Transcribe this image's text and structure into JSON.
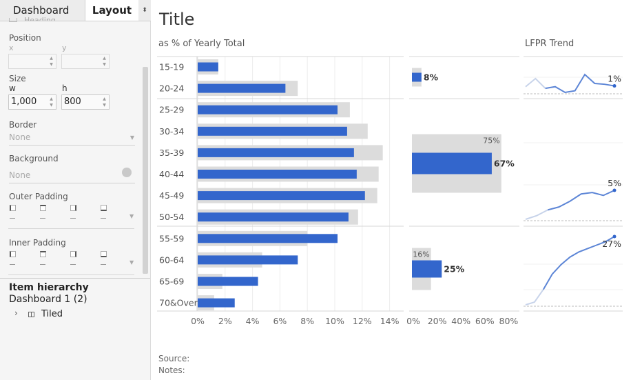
{
  "left_pane": {
    "tabs": {
      "dashboard": "Dashboard",
      "layout": "Layout",
      "menu_glyph": "⬍"
    },
    "partial_top_label": "Heading",
    "position": {
      "label": "Position",
      "x_label": "x",
      "y_label": "y",
      "x_value": "",
      "y_value": ""
    },
    "size": {
      "label": "Size",
      "w_label": "w",
      "h_label": "h",
      "w_value": "1,000",
      "h_value": "800"
    },
    "border": {
      "label": "Border",
      "value": "None"
    },
    "background": {
      "label": "Background",
      "value": "None"
    },
    "outer_padding": {
      "label": "Outer Padding"
    },
    "inner_padding": {
      "label": "Inner Padding"
    },
    "item_hierarchy": {
      "title": "Item hierarchy",
      "dashboard": "Dashboard 1 (2)",
      "tiled": "Tiled",
      "expand_glyph": "›"
    }
  },
  "dashboard": {
    "title": "Title",
    "col_headers": {
      "bar": "as % of Yearly Total",
      "trend": "LFPR Trend"
    },
    "source_label": "Source:",
    "notes_label": "Notes:"
  },
  "colors": {
    "accent": "#3366cc",
    "grey_bar": "#dcdcdc",
    "trend_light": "#c7d3ea"
  },
  "chart_data": [
    {
      "type": "bar",
      "title": "as % of Yearly Total",
      "categories": [
        "15-19",
        "20-24",
        "25-29",
        "30-34",
        "35-39",
        "40-44",
        "45-49",
        "50-54",
        "55-59",
        "60-64",
        "65-69",
        "70&Over"
      ],
      "series": [
        {
          "values": [
            1.5,
            7.3,
            11.1,
            12.4,
            13.5,
            13.2,
            13.1,
            11.7,
            8.0,
            4.7,
            1.8,
            1.2
          ]
        },
        {
          "values": [
            1.5,
            6.4,
            10.2,
            10.9,
            11.4,
            11.6,
            12.2,
            11.0,
            10.2,
            7.3,
            4.4,
            2.7
          ]
        }
      ],
      "xlim": [
        0,
        14
      ],
      "x_ticks": [
        "0%",
        "2%",
        "4%",
        "6%",
        "8%",
        "10%",
        "12%",
        "14%"
      ],
      "grid": true
    },
    {
      "type": "bar",
      "groups": [
        {
          "grey": 8,
          "blue": 8,
          "grey_label": "",
          "blue_label": "8%"
        },
        {
          "grey": 75,
          "blue": 67,
          "grey_label": "75%",
          "blue_label": "67%"
        },
        {
          "grey": 16,
          "blue": 25,
          "grey_label": "16%",
          "blue_label": "25%"
        }
      ],
      "xlim": [
        0,
        80
      ],
      "x_ticks": [
        "0%",
        "20%",
        "40%",
        "60%",
        "80%"
      ]
    },
    {
      "type": "line",
      "title": "LFPR Trend",
      "panels": [
        {
          "values": [
            45,
            55,
            43,
            45,
            38,
            40,
            60,
            49,
            48,
            46
          ],
          "end_label": "1%"
        },
        {
          "values": [
            5,
            10,
            18,
            22,
            30,
            40,
            42,
            38,
            45
          ],
          "end_label": "5%"
        },
        {
          "values": [
            0,
            8,
            45,
            90,
            118,
            140,
            155,
            165,
            175,
            185,
            200
          ],
          "end_label": "27%"
        }
      ]
    }
  ]
}
